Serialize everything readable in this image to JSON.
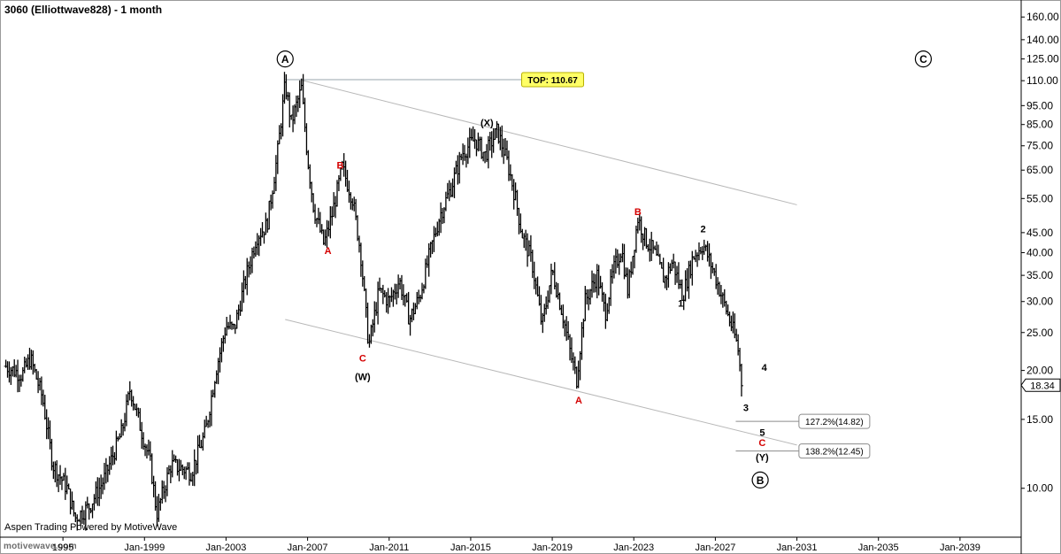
{
  "title": "3060 (Elliottwave828)  - 1 month",
  "credit": "Aspen Trading Powered by MotiveWave",
  "watermark": "motivewave.com",
  "colors": {
    "bars": "#000000",
    "wave_red": "#d40000",
    "top_box": "#ffff66",
    "channel": "#b8b8b8"
  },
  "chart_data": {
    "type": "ohlc",
    "title": "3060 (Elliottwave828)  - 1 month",
    "y_scale": "log",
    "ylim": [
      7.5,
      175
    ],
    "xlim": [
      1992.0,
      2042.0
    ],
    "y_ticks": [
      "160.00",
      "140.00",
      "125.00",
      "110.00",
      "95.00",
      "85.00",
      "75.00",
      "65.00",
      "55.00",
      "45.00",
      "40.00",
      "35.00",
      "30.00",
      "25.00",
      "20.00",
      "15.00",
      "10.00"
    ],
    "x_ticks": [
      {
        "year": 1995,
        "label": "1995"
      },
      {
        "year": 1999,
        "label": "Jan-1999"
      },
      {
        "year": 2003,
        "label": "Jan-2003"
      },
      {
        "year": 2007,
        "label": "Jan-2007"
      },
      {
        "year": 2011,
        "label": "Jan-2011"
      },
      {
        "year": 2015,
        "label": "Jan-2015"
      },
      {
        "year": 2019,
        "label": "Jan-2019"
      },
      {
        "year": 2023,
        "label": "Jan-2023"
      },
      {
        "year": 2027,
        "label": "Jan-2027"
      },
      {
        "year": 2031,
        "label": "Jan-2031"
      },
      {
        "year": 2035,
        "label": "Jan-2035"
      },
      {
        "year": 2039,
        "label": "Jan-2039"
      }
    ],
    "last_price": "18.34",
    "price_path": [
      [
        1992.2,
        20.5
      ],
      [
        1993.0,
        19.5
      ],
      [
        1993.4,
        21.5
      ],
      [
        1994.0,
        17.0
      ],
      [
        1994.5,
        11.5
      ],
      [
        1995.2,
        10.0
      ],
      [
        1995.6,
        8.4
      ],
      [
        1996.3,
        9.0
      ],
      [
        1997.0,
        10.5
      ],
      [
        1997.9,
        14.0
      ],
      [
        1998.3,
        18.0
      ],
      [
        1998.7,
        15.0
      ],
      [
        1999.3,
        11.5
      ],
      [
        1999.6,
        8.6
      ],
      [
        2000.3,
        11.5
      ],
      [
        2001.3,
        11.0
      ],
      [
        2002.0,
        14.0
      ],
      [
        2002.5,
        20.0
      ],
      [
        2003.0,
        26.0
      ],
      [
        2003.4,
        25.5
      ],
      [
        2004.0,
        35.0
      ],
      [
        2004.5,
        44.0
      ],
      [
        2005.0,
        47.0
      ],
      [
        2005.5,
        70.0
      ],
      [
        2005.9,
        108.0
      ],
      [
        2006.2,
        86.0
      ],
      [
        2006.7,
        105.0
      ],
      [
        2007.0,
        70.0
      ],
      [
        2007.3,
        52.0
      ],
      [
        2007.8,
        42.0
      ],
      [
        2008.2,
        50.0
      ],
      [
        2008.7,
        66.0
      ],
      [
        2009.2,
        55.0
      ],
      [
        2009.6,
        40.0
      ],
      [
        2010.0,
        23.0
      ],
      [
        2010.5,
        32.0
      ],
      [
        2011.0,
        30.0
      ],
      [
        2011.5,
        34.0
      ],
      [
        2012.0,
        27.0
      ],
      [
        2012.5,
        31.0
      ],
      [
        2013.0,
        40.0
      ],
      [
        2013.5,
        50.0
      ],
      [
        2014.0,
        58.0
      ],
      [
        2014.6,
        72.0
      ],
      [
        2015.2,
        78.0
      ],
      [
        2015.7,
        71.0
      ],
      [
        2016.3,
        82.0
      ],
      [
        2016.8,
        68.0
      ],
      [
        2017.2,
        55.0
      ],
      [
        2017.5,
        45.0
      ],
      [
        2018.0,
        38.0
      ],
      [
        2018.5,
        26.0
      ],
      [
        2019.0,
        36.0
      ],
      [
        2019.5,
        28.0
      ],
      [
        2019.9,
        22.0
      ],
      [
        2020.2,
        19.0
      ],
      [
        2020.6,
        30.0
      ],
      [
        2021.2,
        35.0
      ],
      [
        2021.6,
        28.0
      ],
      [
        2022.0,
        36.0
      ],
      [
        2022.4,
        41.0
      ],
      [
        2022.7,
        32.0
      ],
      [
        2023.2,
        49.0
      ],
      [
        2023.6,
        43.0
      ],
      [
        2024.0,
        40.0
      ],
      [
        2024.5,
        34.0
      ],
      [
        2024.9,
        38.0
      ],
      [
        2025.4,
        31.0
      ],
      [
        2025.9,
        39.0
      ],
      [
        2026.4,
        42.0
      ],
      [
        2026.9,
        36.0
      ],
      [
        2027.4,
        30.0
      ],
      [
        2027.9,
        25.0
      ],
      [
        2028.1,
        23.0
      ],
      [
        2028.3,
        18.34
      ]
    ],
    "annotations": {
      "circled": [
        {
          "text": "A",
          "x": 2005.9,
          "y": 125
        },
        {
          "text": "C",
          "x": 2037.2,
          "y": 125
        },
        {
          "text": "B",
          "x": 2029.2,
          "y": 10.5
        }
      ],
      "waves": [
        {
          "text": "B",
          "color": "red",
          "x": 2008.6,
          "y": 67
        },
        {
          "text": "A",
          "color": "red",
          "x": 2008.0,
          "y": 40.5
        },
        {
          "text": "C",
          "color": "red",
          "x": 2009.7,
          "y": 21.5
        },
        {
          "text": "(W)",
          "color": "black",
          "x": 2009.7,
          "y": 19.3
        },
        {
          "text": "(X)",
          "color": "black",
          "x": 2015.8,
          "y": 86
        },
        {
          "text": "B",
          "color": "red",
          "x": 2023.2,
          "y": 51
        },
        {
          "text": "A",
          "color": "red",
          "x": 2020.3,
          "y": 16.8
        },
        {
          "text": "2",
          "color": "black",
          "x": 2026.4,
          "y": 46
        },
        {
          "text": "1",
          "color": "black",
          "x": 2025.3,
          "y": 29.7
        },
        {
          "text": "4",
          "color": "black",
          "x": 2029.4,
          "y": 20.4
        },
        {
          "text": "3",
          "color": "black",
          "x": 2028.5,
          "y": 16.1
        },
        {
          "text": "5",
          "color": "black",
          "x": 2029.3,
          "y": 13.9
        },
        {
          "text": "C",
          "color": "red",
          "x": 2029.3,
          "y": 13.1
        },
        {
          "text": "(Y)",
          "color": "black",
          "x": 2029.3,
          "y": 12.0
        }
      ],
      "top_line": {
        "label": "TOP: 110.67",
        "value": 110.67,
        "x_start": 2005.9,
        "x_end": 2017.5
      },
      "fib_levels": [
        {
          "label": "127.2%(14.82)",
          "value": 14.82,
          "x_start": 2028.0,
          "x_end": 2031.1
        },
        {
          "label": "138.2%(12.45)",
          "value": 12.45,
          "x_start": 2028.0,
          "x_end": 2031.1
        }
      ],
      "channel": [
        {
          "x1": 2006.6,
          "y1": 110.67,
          "x2": 2031.0,
          "y2": 53.0
        },
        {
          "x1": 2005.9,
          "y1": 27.0,
          "x2": 2031.0,
          "y2": 12.9
        }
      ]
    }
  }
}
